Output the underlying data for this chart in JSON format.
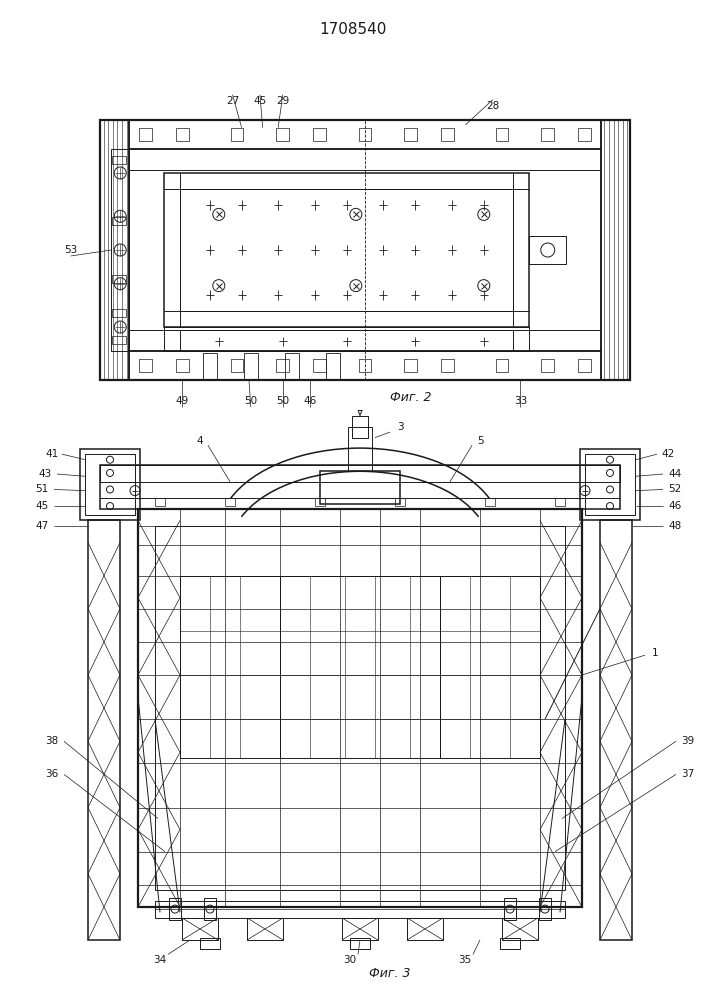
{
  "title": "1708540",
  "bg_color": "#ffffff",
  "line_color": "#1a1a1a",
  "fig_width": 7.07,
  "fig_height": 10.0,
  "fig2_label": "Фиг. 2",
  "fig3_label": "Фиг. 3",
  "ann_fs": 7.5,
  "title_fs": 11
}
